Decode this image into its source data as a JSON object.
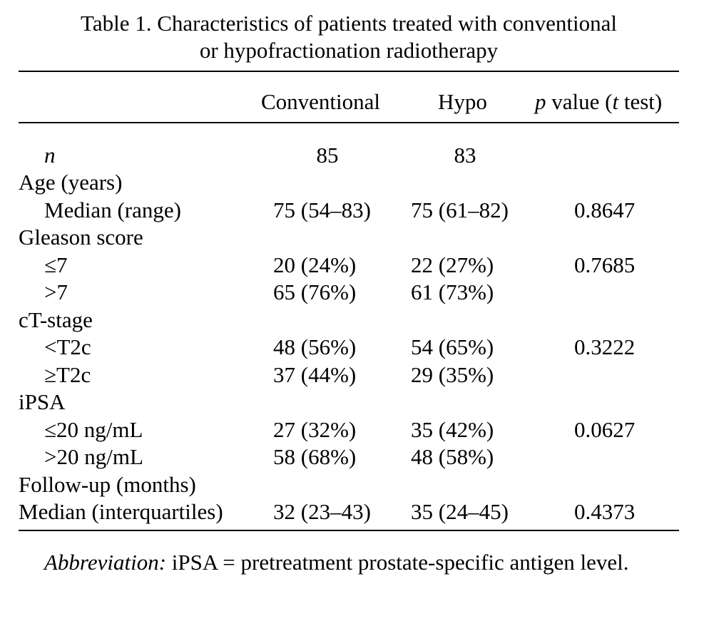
{
  "caption": {
    "line1": "Table 1.  Characteristics of patients treated with conventional",
    "line2": "or hypofractionation radiotherapy"
  },
  "columns": {
    "conventional": "Conventional",
    "hypo": "Hypo",
    "p_italic": "p",
    "p_mid": " value (",
    "t_italic": "t",
    "p_end": " test)"
  },
  "rows": [
    {
      "label": "n",
      "conv": "85",
      "hypo": "83",
      "p": ""
    },
    {
      "label": "Age (years)",
      "conv": "",
      "hypo": "",
      "p": ""
    },
    {
      "label": "Median (range)",
      "conv": "75 (54–83)",
      "hypo": "75 (61–82)",
      "p": "0.8647"
    },
    {
      "label": "Gleason score",
      "conv": "",
      "hypo": "",
      "p": ""
    },
    {
      "label": "≤7",
      "conv": "20 (24%)",
      "hypo": "22 (27%)",
      "p": "0.7685"
    },
    {
      "label": ">7",
      "conv": "65 (76%)",
      "hypo": "61 (73%)",
      "p": ""
    },
    {
      "label": "cT-stage",
      "conv": "",
      "hypo": "",
      "p": ""
    },
    {
      "label": "<T2c",
      "conv": "48 (56%)",
      "hypo": "54 (65%)",
      "p": "0.3222"
    },
    {
      "label": "≥T2c",
      "conv": "37 (44%)",
      "hypo": "29 (35%)",
      "p": ""
    },
    {
      "label": "iPSA",
      "conv": "",
      "hypo": "",
      "p": ""
    },
    {
      "label": "≤20 ng/mL",
      "conv": "27 (32%)",
      "hypo": "35 (42%)",
      "p": "0.0627"
    },
    {
      "label": ">20 ng/mL",
      "conv": "58 (68%)",
      "hypo": "48 (58%)",
      "p": ""
    },
    {
      "label": "Follow-up (months)",
      "conv": "",
      "hypo": "",
      "p": ""
    },
    {
      "label": "Median (interquartiles)",
      "conv": "32 (23–43)",
      "hypo": "35 (24–45)",
      "p": "0.4373"
    }
  ],
  "footnote": {
    "lead": "Abbreviation:",
    "text": " iPSA = pretreatment prostate-specific antigen level."
  }
}
